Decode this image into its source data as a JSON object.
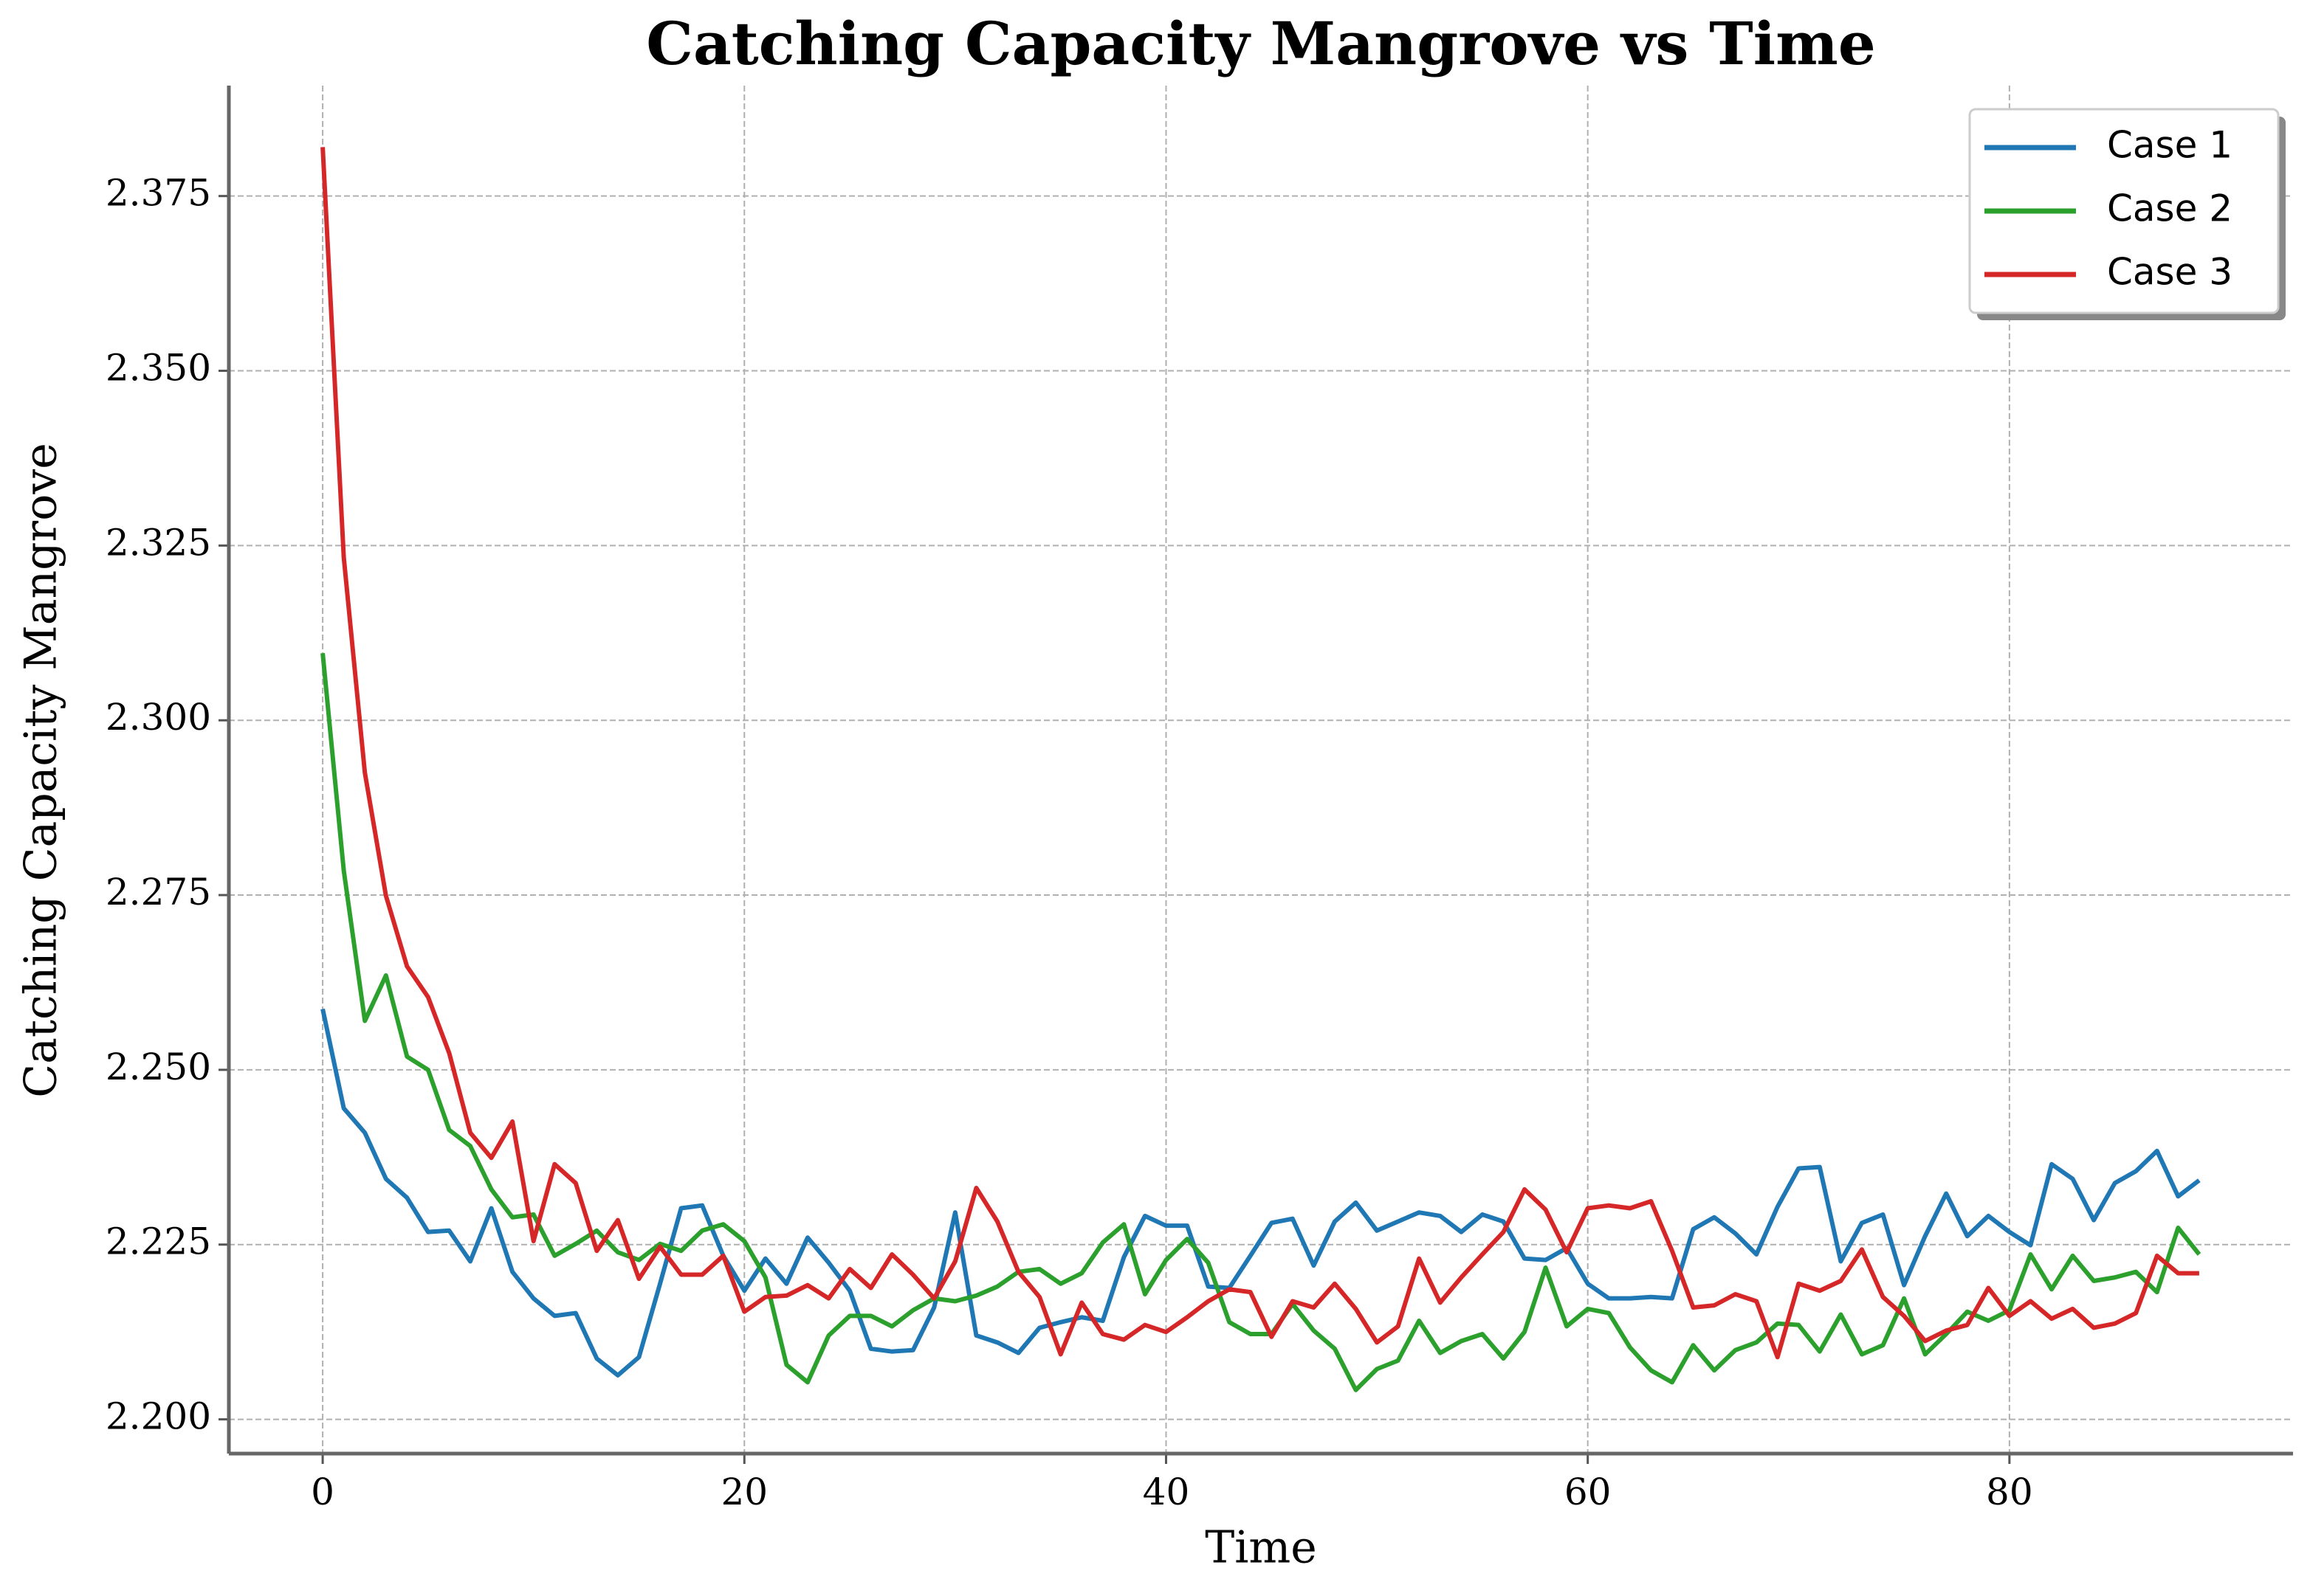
{
  "chart_data": {
    "type": "line",
    "title": "Catching Capacity Mangrove vs Time",
    "xlabel": "Time",
    "ylabel": "Catching Capacity Mangrove",
    "x": [
      0,
      1,
      2,
      3,
      4,
      5,
      6,
      7,
      8,
      9,
      10,
      11,
      12,
      13,
      14,
      15,
      16,
      17,
      18,
      19,
      20,
      21,
      22,
      23,
      24,
      25,
      26,
      27,
      28,
      29,
      30,
      31,
      32,
      33,
      34,
      35,
      36,
      37,
      38,
      39,
      40,
      41,
      42,
      43,
      44,
      45,
      46,
      47,
      48,
      49,
      50,
      51,
      52,
      53,
      54,
      55,
      56,
      57,
      58,
      59,
      60,
      61,
      62,
      63,
      64,
      65,
      66,
      67,
      68,
      69,
      70,
      71,
      72,
      73,
      74,
      75,
      76,
      77,
      78,
      79,
      80,
      81,
      82,
      83,
      84,
      85,
      86,
      87,
      88,
      89
    ],
    "series": [
      {
        "name": "Case 1",
        "color": "#1f77b4",
        "values": [
          2.2587,
          2.2445,
          2.241,
          2.2344,
          2.2317,
          2.2268,
          2.227,
          2.2226,
          2.2302,
          2.2211,
          2.2173,
          2.2148,
          2.2152,
          2.2087,
          2.2063,
          2.2089,
          2.2194,
          2.2302,
          2.2306,
          2.2234,
          2.2184,
          2.223,
          2.2194,
          2.226,
          2.2224,
          2.2184,
          2.2101,
          2.2097,
          2.2099,
          2.216,
          2.2296,
          2.212,
          2.211,
          2.2095,
          2.2131,
          2.2139,
          2.2146,
          2.2141,
          2.2232,
          2.2291,
          2.2277,
          2.2277,
          2.219,
          2.2188,
          2.2234,
          2.2281,
          2.2287,
          2.222,
          2.2283,
          2.231,
          2.227,
          2.2283,
          2.2296,
          2.2291,
          2.2268,
          2.2293,
          2.2283,
          2.223,
          2.2228,
          2.2245,
          2.2194,
          2.2173,
          2.2173,
          2.2175,
          2.2173,
          2.2272,
          2.2289,
          2.2266,
          2.2236,
          2.2304,
          2.2359,
          2.2361,
          2.2226,
          2.2281,
          2.2293,
          2.2192,
          2.2262,
          2.2323,
          2.2262,
          2.2291,
          2.2268,
          2.2249,
          2.2365,
          2.2344,
          2.2285,
          2.2338,
          2.2355,
          2.2384,
          2.2319,
          2.2342
        ]
      },
      {
        "name": "Case 2",
        "color": "#2ca02c",
        "values": [
          2.3096,
          2.2785,
          2.257,
          2.2635,
          2.2519,
          2.25,
          2.2414,
          2.2391,
          2.2329,
          2.2289,
          2.2293,
          2.2234,
          2.2251,
          2.227,
          2.2239,
          2.2228,
          2.2251,
          2.2241,
          2.227,
          2.2279,
          2.2255,
          2.2203,
          2.2078,
          2.2053,
          2.212,
          2.2148,
          2.2148,
          2.2133,
          2.2156,
          2.2173,
          2.2169,
          2.2177,
          2.219,
          2.2211,
          2.2215,
          2.2194,
          2.2209,
          2.2253,
          2.2279,
          2.2179,
          2.2228,
          2.2258,
          2.2224,
          2.2139,
          2.2122,
          2.2122,
          2.2165,
          2.2127,
          2.2101,
          2.2042,
          2.2072,
          2.2084,
          2.2141,
          2.2095,
          2.2112,
          2.2122,
          2.2087,
          2.2125,
          2.2217,
          2.2133,
          2.2158,
          2.2152,
          2.2103,
          2.207,
          2.2053,
          2.2106,
          2.207,
          2.2099,
          2.211,
          2.2137,
          2.2135,
          2.2097,
          2.215,
          2.2093,
          2.2106,
          2.2173,
          2.2093,
          2.2122,
          2.2154,
          2.2141,
          2.2156,
          2.2236,
          2.2186,
          2.2234,
          2.2198,
          2.2203,
          2.2211,
          2.2182,
          2.2274,
          2.2236
        ]
      },
      {
        "name": "Case 3",
        "color": "#d62728",
        "values": [
          2.382,
          2.3233,
          2.2925,
          2.2749,
          2.2648,
          2.2604,
          2.2524,
          2.241,
          2.2374,
          2.2426,
          2.2255,
          2.2365,
          2.2338,
          2.2241,
          2.2285,
          2.2201,
          2.2247,
          2.2207,
          2.2207,
          2.2234,
          2.2154,
          2.2175,
          2.2177,
          2.2192,
          2.2173,
          2.2215,
          2.2188,
          2.2236,
          2.2207,
          2.2173,
          2.2226,
          2.2331,
          2.2283,
          2.2211,
          2.2175,
          2.2093,
          2.2167,
          2.2122,
          2.2114,
          2.2135,
          2.2125,
          2.2146,
          2.2169,
          2.2186,
          2.2182,
          2.2118,
          2.2169,
          2.216,
          2.2194,
          2.2158,
          2.211,
          2.2133,
          2.223,
          2.2167,
          2.2203,
          2.2236,
          2.2268,
          2.2329,
          2.23,
          2.2239,
          2.2302,
          2.2306,
          2.2302,
          2.2312,
          2.2241,
          2.216,
          2.2163,
          2.2179,
          2.2169,
          2.2089,
          2.2194,
          2.2184,
          2.2198,
          2.2243,
          2.2175,
          2.2148,
          2.2112,
          2.2127,
          2.2135,
          2.2188,
          2.2148,
          2.2169,
          2.2144,
          2.2158,
          2.2131,
          2.2137,
          2.2152,
          2.2234,
          2.2209,
          2.2209
        ]
      }
    ],
    "xlim": [
      -4.45,
      93.45
    ],
    "xticks": [
      0,
      20,
      40,
      60,
      80
    ],
    "ylim": [
      2.1951,
      2.3908
    ],
    "yticks": [
      {
        "value": 2.2,
        "label": "2.200"
      },
      {
        "value": 2.225,
        "label": "2.225"
      },
      {
        "value": 2.25,
        "label": "2.250"
      },
      {
        "value": 2.275,
        "label": "2.275"
      },
      {
        "value": 2.3,
        "label": "2.300"
      },
      {
        "value": 2.325,
        "label": "2.325"
      },
      {
        "value": 2.35,
        "label": "2.350"
      },
      {
        "value": 2.375,
        "label": "2.375"
      }
    ],
    "grid": true,
    "legend": "upper right"
  }
}
